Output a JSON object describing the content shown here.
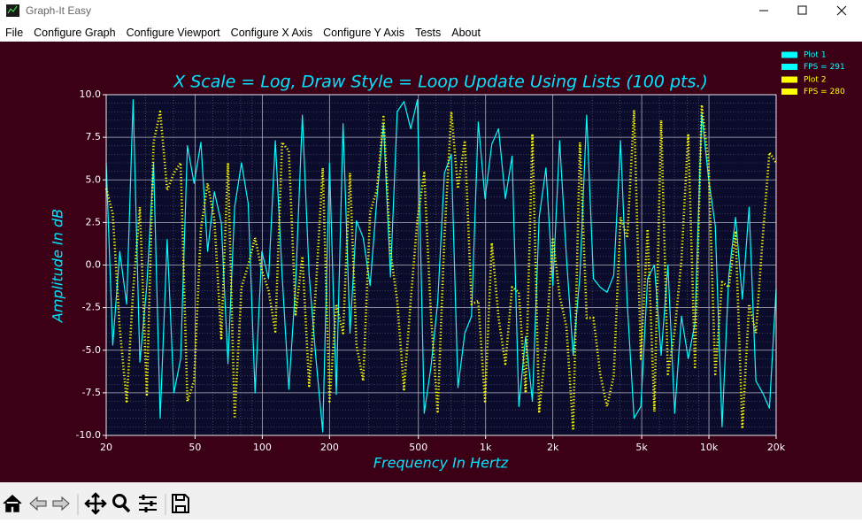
{
  "window": {
    "title": "Graph-It Easy"
  },
  "menu": [
    "File",
    "Configure Graph",
    "Configure Viewport",
    "Configure X Axis",
    "Configure Y Axis",
    "Tests",
    "About"
  ],
  "chart_data": {
    "type": "line",
    "title": "X Scale = Log, Draw Style = Loop Update Using Lists (100 pts.)",
    "x_label": "Frequency In Hertz",
    "y_label": "Amplitude In dB",
    "x_scale": "log",
    "grid": true,
    "legend": "upper right",
    "x": [
      20,
      21.4,
      23.0,
      24.7,
      26.4,
      28.3,
      30.4,
      32.6,
      34.9,
      37.5,
      40.2,
      43.1,
      46.2,
      49.5,
      53.1,
      56.9,
      61.0,
      65.5,
      70.2,
      75.2,
      80.7,
      86.5,
      92.8,
      99.5,
      106.7,
      114.4,
      122.7,
      131.5,
      141.0,
      151.2,
      162.1,
      173.9,
      186.5,
      200.0,
      214.5,
      230,
      247,
      264,
      283,
      304,
      326,
      349,
      375,
      402,
      431,
      462,
      495,
      531,
      569,
      610,
      654,
      702,
      752,
      807,
      865,
      927,
      994,
      1066,
      1143,
      1226,
      1314,
      1409,
      1511,
      1620,
      1737,
      1863,
      2000,
      2145,
      2300,
      2466,
      2644,
      2835,
      3040,
      3260,
      3496,
      3749,
      4020,
      4310,
      4622,
      4956,
      5314,
      5698,
      6110,
      6552,
      7025,
      7533,
      8077,
      8661,
      9287,
      9958,
      10678,
      11450,
      12277,
      13164,
      14115,
      15135,
      16229,
      17402,
      18660,
      20000
    ],
    "series": [
      {
        "name": "Plot 1",
        "fps_label": "FPS = 291",
        "color": "#00ffff",
        "style": "solid",
        "values": [
          6,
          -4.7,
          0.8,
          -2.3,
          9.7,
          -5.7,
          -1.2,
          6,
          -9,
          1.5,
          -7.5,
          -5.5,
          7,
          4.8,
          7.2,
          0.8,
          4.3,
          2.5,
          -5.8,
          3.4,
          6,
          3.6,
          -7.5,
          0.8,
          -0.8,
          7.3,
          -0.6,
          -7.3,
          -1.1,
          8.8,
          -0.6,
          -5.5,
          -9.8,
          6,
          -7.6,
          8.3,
          -4,
          2.6,
          1.6,
          -1.2,
          3.9,
          8.3,
          -0.7,
          9,
          9.6,
          8,
          9.7,
          -8.7,
          -6,
          -2.2,
          5.4,
          6.5,
          -7.2,
          -4,
          -3,
          8.4,
          3.9,
          7.1,
          8,
          3.9,
          6.4,
          -8.3,
          -4.2,
          -8,
          2.8,
          5.7,
          -1.2,
          7.3,
          0.5,
          -5.3,
          -0.6,
          8.8,
          -0.8,
          -1.3,
          -1.6,
          -0.6,
          7.3,
          -2.3,
          -9,
          -8.3,
          -0.8,
          0,
          -5.3,
          0,
          -8.7,
          -3,
          -5.5,
          -3.4,
          8.9,
          5.1,
          2.3,
          -9.5,
          -0.6,
          2.8,
          -2.0,
          3.4,
          -6.8,
          -7.5,
          -8.4,
          -1.4
        ]
      },
      {
        "name": "Plot 2",
        "fps_label": "FPS = 280",
        "color": "#ffff00",
        "style": "dotted",
        "values": [
          4.5,
          3,
          -3.7,
          -8,
          -1.5,
          3.4,
          -7.6,
          7.2,
          9,
          4.4,
          5.4,
          6,
          -8,
          -6.8,
          2.1,
          4.8,
          2.7,
          -4.3,
          6,
          -9,
          -1.3,
          0,
          1.6,
          -0.3,
          -1.5,
          -3.9,
          7.2,
          6.7,
          -2.9,
          0.5,
          -7.1,
          -1.3,
          5.7,
          -8,
          -2.3,
          -4,
          5.4,
          -4.7,
          -6.8,
          3.1,
          4.4,
          8.7,
          0.8,
          -2.1,
          -7.3,
          -2.1,
          2.7,
          5.4,
          -2.9,
          -8.6,
          1.6,
          9,
          4.5,
          7.3,
          -2.3,
          -2.1,
          -8,
          1.3,
          -3.1,
          -5.8,
          -1.3,
          -1.6,
          -7.5,
          7.7,
          -8.6,
          -4.7,
          1.6,
          -1.8,
          -3.6,
          -9.7,
          7.2,
          -3.1,
          -3.1,
          -6.4,
          -8.3,
          -6.5,
          2.8,
          1.6,
          9.1,
          -5.5,
          2.1,
          -8.6,
          8.5,
          -6.4,
          -3.9,
          0.3,
          7.7,
          -6,
          9.4,
          6,
          -6.4,
          -1,
          -1.3,
          1.9,
          -9.6,
          -2.3,
          -4,
          1.6,
          6.6,
          6
        ]
      }
    ],
    "xlim": [
      20,
      20000
    ],
    "ylim": [
      -10,
      10
    ],
    "xticks": [
      20,
      50,
      100,
      200,
      500,
      {
        "value": 1000,
        "label": "1k"
      },
      {
        "value": 2000,
        "label": "2k"
      },
      {
        "value": 5000,
        "label": "5k"
      },
      {
        "value": 10000,
        "label": "10k"
      },
      {
        "value": 20000,
        "label": "20k"
      }
    ],
    "x_minor_ticks": [
      30,
      40,
      60,
      70,
      80,
      90,
      300,
      400,
      600,
      700,
      800,
      900,
      3000,
      4000,
      6000,
      7000,
      8000,
      9000
    ],
    "yticks": [
      {
        "value": -10,
        "label": "-10.0"
      },
      {
        "value": -7.5,
        "label": "-7.5"
      },
      {
        "value": -5,
        "label": "-5.0"
      },
      {
        "value": -2.5,
        "label": "-2.5"
      },
      {
        "value": 0,
        "label": "0.0"
      },
      {
        "value": 2.5,
        "label": "2.5"
      },
      {
        "value": 5,
        "label": "5.0"
      },
      {
        "value": 7.5,
        "label": "7.5"
      },
      {
        "value": 10,
        "label": "10.0"
      }
    ],
    "y_minor_step": 0.5
  }
}
